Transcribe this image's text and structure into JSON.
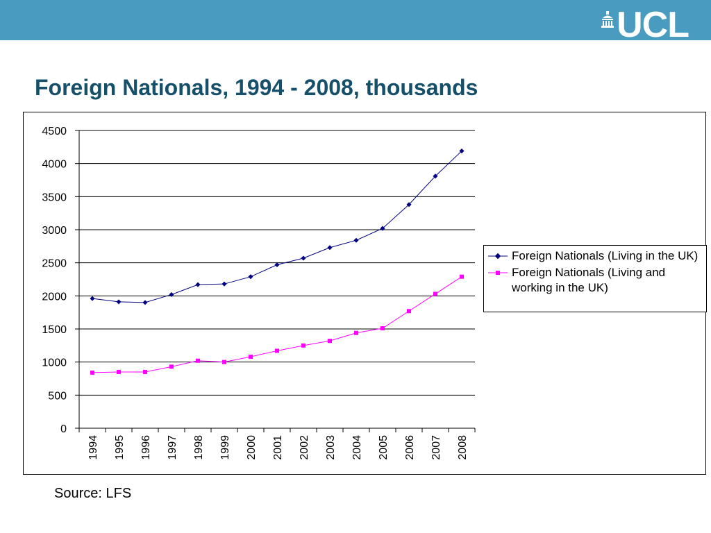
{
  "header": {
    "bar_color": "#4a9bc0",
    "logo_text": "UCL",
    "logo_icon": "portico-icon"
  },
  "slide": {
    "title": "Foreign Nationals, 1994 - 2008, thousands",
    "title_color": "#164f6a",
    "source": "Source: LFS"
  },
  "chart_data": {
    "type": "line",
    "title": "",
    "xlabel": "",
    "ylabel": "",
    "categories": [
      "1994",
      "1995",
      "1996",
      "1997",
      "1998",
      "1999",
      "2000",
      "2001",
      "2002",
      "2003",
      "2004",
      "2005",
      "2006",
      "2007",
      "2008"
    ],
    "ylim": [
      0,
      4500
    ],
    "yticks": [
      0,
      500,
      1000,
      1500,
      2000,
      2500,
      3000,
      3500,
      4000,
      4500
    ],
    "grid": true,
    "legend_position": "right",
    "series": [
      {
        "name": "Foreign Nationals (Living in the UK)",
        "color": "#000080",
        "marker": "diamond",
        "values": [
          1960,
          1910,
          1900,
          2020,
          2170,
          2180,
          2290,
          2470,
          2570,
          2730,
          2840,
          3020,
          3380,
          3810,
          4190
        ]
      },
      {
        "name": "Foreign Nationals (Living and working in the UK)",
        "color": "#ff00ff",
        "marker": "square",
        "values": [
          840,
          850,
          850,
          930,
          1020,
          1000,
          1080,
          1170,
          1250,
          1320,
          1440,
          1510,
          1770,
          2030,
          2290
        ]
      }
    ]
  }
}
